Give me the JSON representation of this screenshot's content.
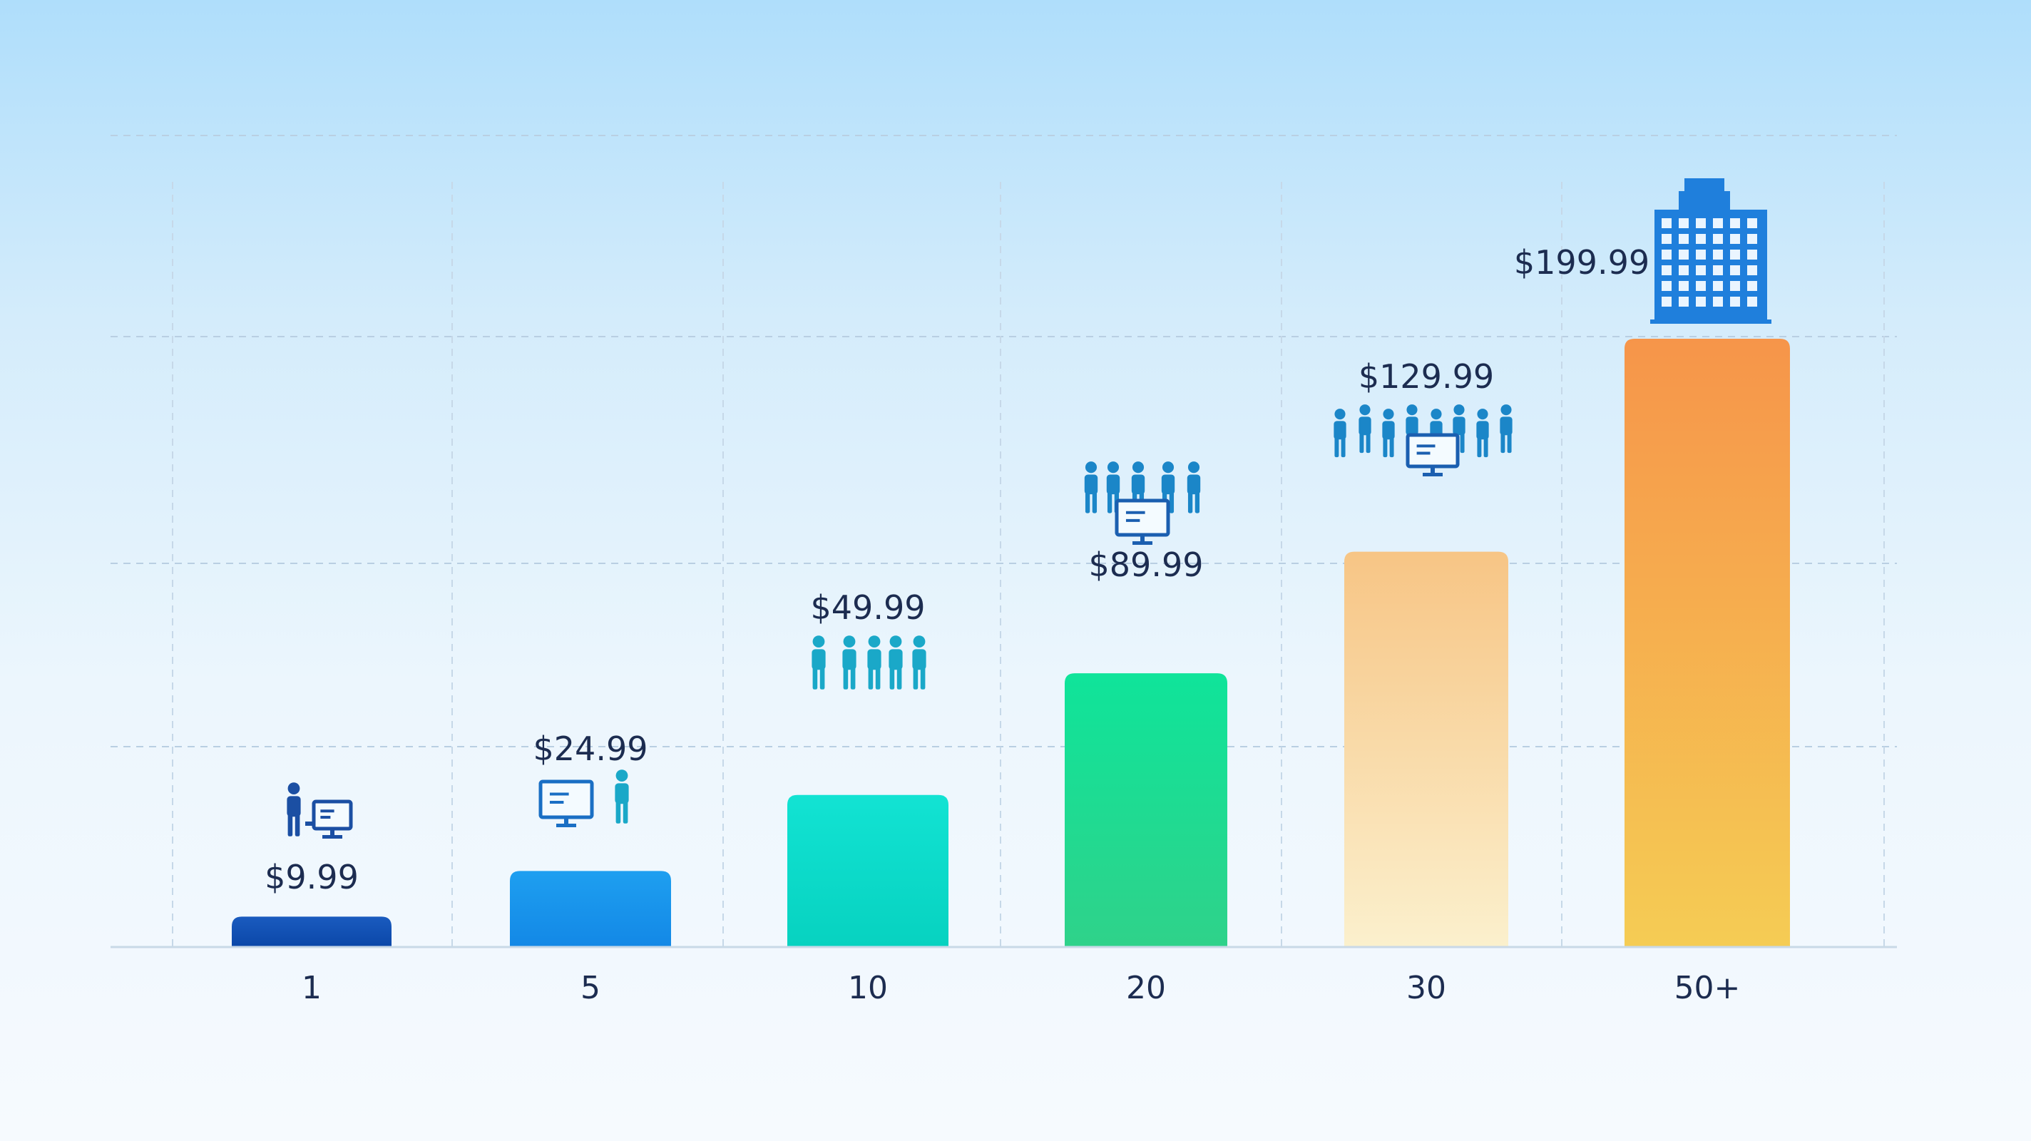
{
  "chart_data": {
    "type": "bar",
    "categories": [
      "1",
      "5",
      "10",
      "20",
      "30",
      "50+"
    ],
    "values": [
      9.99,
      24.99,
      49.99,
      89.99,
      129.99,
      199.99
    ],
    "data_labels": [
      "$9.99",
      "$24.99",
      "$49.99",
      "$89.99",
      "$129.99",
      "$199.99"
    ],
    "title": "",
    "xlabel": "",
    "ylabel": "",
    "ylim": [
      0,
      220
    ],
    "grid": true,
    "legend": "none",
    "colors": [
      [
        "#1a5bbf",
        "#0b47a8"
      ],
      [
        "#1e9ff0",
        "#1388e6"
      ],
      [
        "#12e3d3",
        "#07d2c0"
      ],
      [
        "#0fe49a",
        "#2fd28a"
      ],
      [
        "#f7c585",
        "#fbf0cd"
      ],
      [
        "#f6954a",
        "#f5cc54"
      ]
    ],
    "icons": [
      "single-user-workstation-icon",
      "user-with-monitor-icon",
      "five-users-icon",
      "team-with-monitor-icon",
      "large-team-icon",
      "office-building-icon"
    ]
  }
}
